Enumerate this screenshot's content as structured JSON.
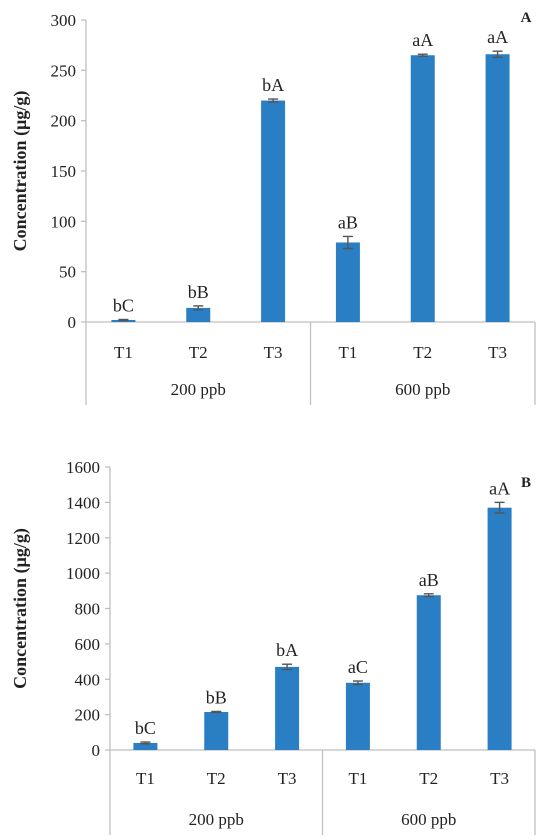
{
  "chart_data": [
    {
      "type": "bar",
      "panel_label": "A",
      "ylabel": "Concentration (µg/g)",
      "ylim": [
        0,
        300
      ],
      "yticks": [
        "0",
        "50",
        "100",
        "150",
        "200",
        "250",
        "300"
      ],
      "categories": [
        "T1",
        "T2",
        "T3",
        "T1",
        "T2",
        "T3"
      ],
      "groups": [
        {
          "label": "200 ppb",
          "count": 3
        },
        {
          "label": "600 ppb",
          "count": 3
        }
      ],
      "values": [
        2,
        14,
        220,
        79,
        265,
        266
      ],
      "errors": [
        0.5,
        2,
        1.5,
        6,
        1,
        3
      ],
      "bar_labels": [
        "bC",
        "bB",
        "bA",
        "aB",
        "aA",
        "aA"
      ],
      "grid": false,
      "bar_color": "#2a7fc4"
    },
    {
      "type": "bar",
      "panel_label": "B",
      "ylabel": "Concentration (µg/g)",
      "ylim": [
        0,
        1600
      ],
      "yticks": [
        "0",
        "200",
        "400",
        "600",
        "800",
        "1000",
        "1200",
        "1400",
        "1600"
      ],
      "categories": [
        "T1",
        "T2",
        "T3",
        "T1",
        "T2",
        "T3"
      ],
      "groups": [
        {
          "label": "200 ppb",
          "count": 3
        },
        {
          "label": "600 ppb",
          "count": 3
        }
      ],
      "values": [
        40,
        215,
        470,
        380,
        875,
        1370
      ],
      "errors": [
        5,
        3,
        15,
        10,
        8,
        30
      ],
      "bar_labels": [
        "bC",
        "bB",
        "bA",
        "aC",
        "aB",
        "aA"
      ],
      "grid": false,
      "bar_color": "#2a7fc4"
    }
  ]
}
